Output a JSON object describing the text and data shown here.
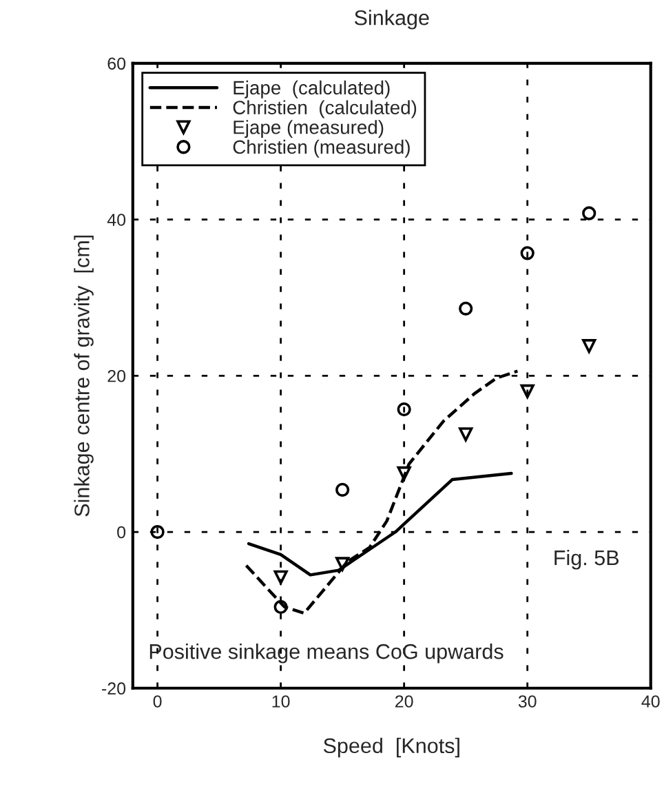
{
  "chart_data": {
    "type": "line",
    "title": "Sinkage",
    "xlabel": "Speed  [Knots]",
    "ylabel": "Sinkage centre of gravity  [cm]",
    "xlim": [
      -2,
      40
    ],
    "xticks": [
      0,
      10,
      20,
      30,
      40
    ],
    "ylim": [
      -20,
      60
    ],
    "yticks": [
      -20,
      0,
      20,
      40,
      60
    ],
    "grid": true,
    "legend": "top left",
    "annotations": [
      "Fig. 5B",
      "Positive sinkage means CoG upwards"
    ],
    "series": [
      {
        "name": "Ejape  (calculated)",
        "line_style": "solid",
        "marker": "none",
        "color": "#000000",
        "x": [
          7.4,
          10,
          12.4,
          14.7,
          19.3,
          23.9,
          28.7
        ],
        "values": [
          -1.5,
          -2.9,
          -5.5,
          -4.9,
          0,
          6.7,
          7.5
        ]
      },
      {
        "name": "Christien  (calculated)",
        "line_style": "dashed",
        "marker": "none",
        "color": "#000000",
        "x": [
          7.2,
          10.3,
          11.9,
          15.4,
          17.2,
          18.6,
          20.4,
          23.2,
          25.7,
          27.5,
          29.2
        ],
        "values": [
          -4.3,
          -9.6,
          -10.4,
          -3.8,
          -2.0,
          1.4,
          8.7,
          14.2,
          17.7,
          19.7,
          20.6
        ]
      },
      {
        "name": "Ejape (measured)",
        "type": "scatter",
        "marker": "triangle",
        "color": "#000000",
        "x": [
          10,
          15,
          20,
          25,
          30,
          35
        ],
        "values": [
          -5.8,
          -4.1,
          7.5,
          12.5,
          18,
          23.8
        ]
      },
      {
        "name": "Christien (measured)",
        "type": "scatter",
        "marker": "circle",
        "color": "#000000",
        "x": [
          0,
          10,
          15,
          20,
          25,
          30,
          35
        ],
        "values": [
          0,
          -9.6,
          5.4,
          15.7,
          28.6,
          35.7,
          40.8
        ]
      }
    ]
  }
}
